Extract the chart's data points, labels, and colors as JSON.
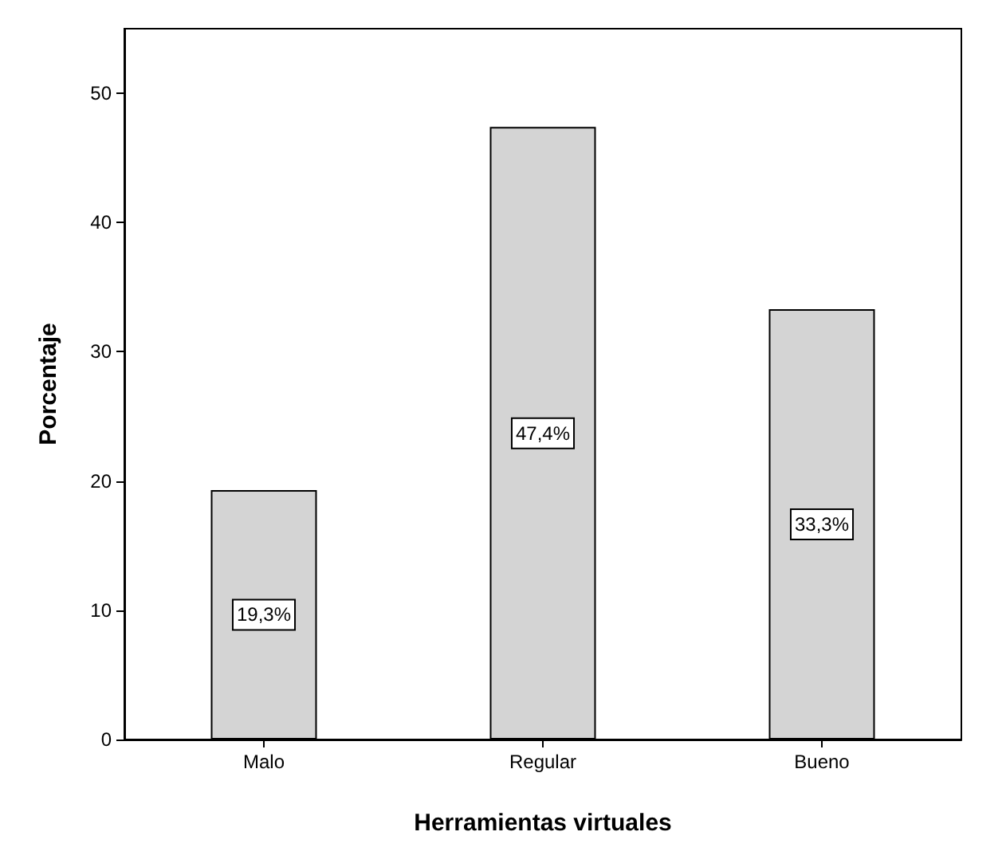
{
  "chart_data": {
    "type": "bar",
    "xlabel": "Herramientas virtuales",
    "ylabel": "Porcentaje",
    "categories": [
      "Malo",
      "Regular",
      "Bueno"
    ],
    "values": [
      19.3,
      47.4,
      33.3
    ],
    "value_labels": [
      "19,3%",
      "47,4%",
      "33,3%"
    ],
    "color": "#d4d4d4",
    "ylim": [
      0,
      55
    ],
    "yticks": [
      0,
      10,
      20,
      30,
      40,
      50
    ],
    "grid": false
  }
}
